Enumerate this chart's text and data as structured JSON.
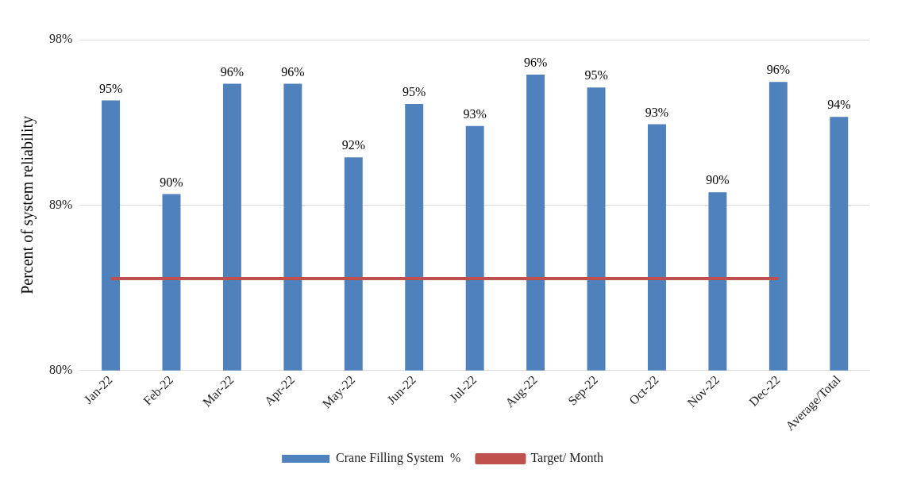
{
  "chart_data": {
    "type": "bar",
    "ylabel": "Percent of system reliability",
    "categories": [
      "Jan-22",
      "Feb-22",
      "Mar-22",
      "Apr-22",
      "May-22",
      "Jun-22",
      "Jul-22",
      "Aug-22",
      "Sep-22",
      "Oct-22",
      "Nov-22",
      "Dec-22",
      "Average/Total"
    ],
    "series": [
      {
        "name": "Crane Filling System  %",
        "color": "#4f81bd",
        "values": [
          94.7,
          89.6,
          95.6,
          95.6,
          91.6,
          94.5,
          93.3,
          96.1,
          95.4,
          93.4,
          89.7,
          95.7,
          93.8
        ],
        "value_labels": [
          "95%",
          "90%",
          "96%",
          "96%",
          "92%",
          "95%",
          "93%",
          "96%",
          "95%",
          "93%",
          "90%",
          "96%",
          "94%"
        ]
      },
      {
        "name": "Target/ Month",
        "type": "line",
        "color": "#c0504d",
        "values": [
          85,
          85,
          85,
          85,
          85,
          85,
          85,
          85,
          85,
          85,
          85,
          85,
          null
        ]
      }
    ],
    "ylim": [
      80,
      98
    ],
    "yticks": [
      {
        "value": 80,
        "label": "80%"
      },
      {
        "value": 89,
        "label": "89%"
      },
      {
        "value": 98,
        "label": "98%"
      }
    ],
    "grid": "y",
    "legend": "bottom",
    "marker": "none",
    "line_style": "solid"
  }
}
